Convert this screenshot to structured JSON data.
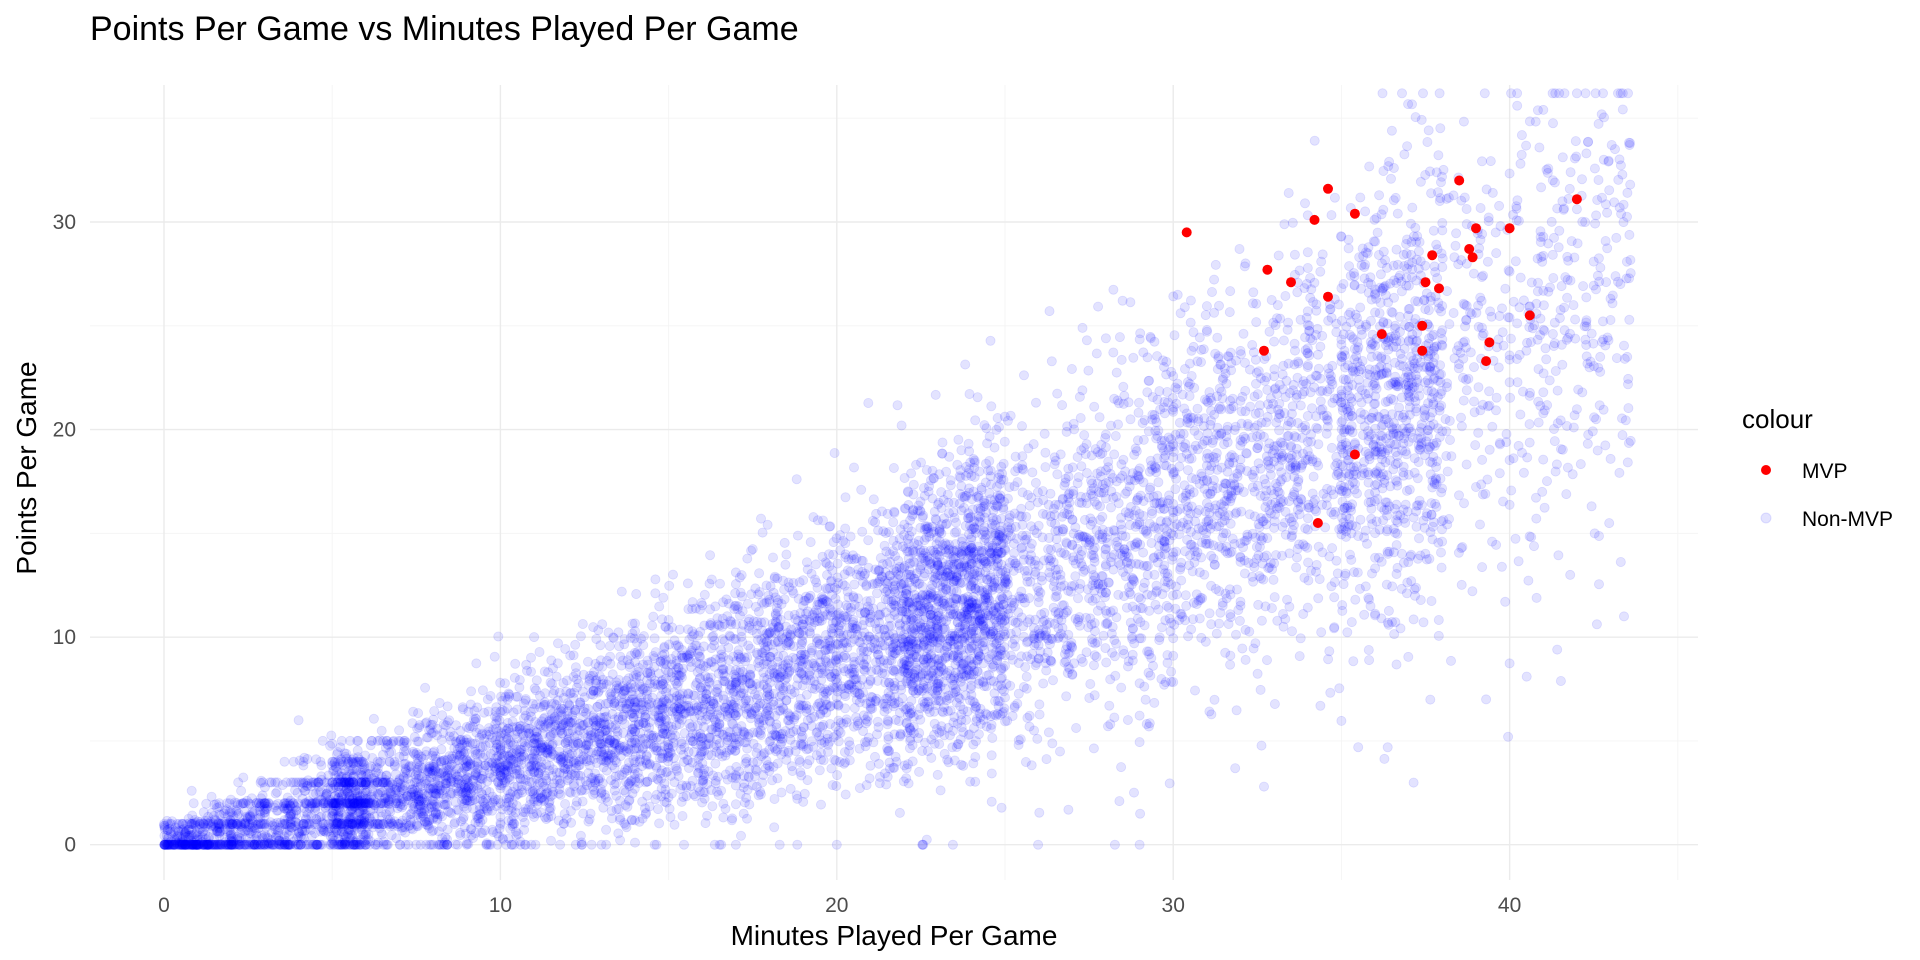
{
  "chart_data": {
    "type": "scatter",
    "title": "Points Per Game vs Minutes Played Per Game",
    "xlabel": "Minutes Played Per Game",
    "ylabel": "Points Per Game",
    "xlim": [
      -2.2,
      45.6
    ],
    "ylim": [
      -1.7,
      36.6
    ],
    "x_ticks": [
      0,
      10,
      20,
      30,
      40
    ],
    "y_ticks": [
      0,
      10,
      20,
      30
    ],
    "grid": true,
    "legend": {
      "title": "colour",
      "placement": "right",
      "entries": [
        {
          "label": "MVP",
          "color": "#ff0000"
        },
        {
          "label": "Non-MVP",
          "color": "#0000ff"
        }
      ]
    },
    "series": [
      {
        "name": "MVP",
        "color": "#ff0000",
        "opacity": 1,
        "points": [
          [
            30.4,
            29.5
          ],
          [
            32.7,
            23.8
          ],
          [
            32.8,
            27.7
          ],
          [
            33.5,
            27.1
          ],
          [
            34.2,
            30.1
          ],
          [
            34.3,
            15.5
          ],
          [
            34.6,
            26.4
          ],
          [
            34.6,
            31.6
          ],
          [
            35.4,
            30.4
          ],
          [
            35.4,
            18.8
          ],
          [
            36.2,
            24.6
          ],
          [
            37.4,
            23.8
          ],
          [
            37.4,
            25.0
          ],
          [
            37.5,
            27.1
          ],
          [
            37.7,
            28.4
          ],
          [
            37.9,
            26.8
          ],
          [
            38.5,
            32.0
          ],
          [
            38.8,
            28.7
          ],
          [
            38.9,
            28.3
          ],
          [
            39.0,
            29.7
          ],
          [
            39.3,
            23.3
          ],
          [
            39.4,
            24.2
          ],
          [
            40.0,
            29.7
          ],
          [
            40.6,
            25.5
          ],
          [
            42.0,
            31.1
          ]
        ]
      },
      {
        "name": "Non-MVP",
        "color": "#0000ff",
        "opacity": 0.11,
        "description_of_cloud": {
          "count": 9000,
          "x_range": [
            0,
            43.6
          ],
          "y_range": [
            0,
            36.2
          ],
          "trend": "y ≈ 0.30x + 0.0078x²"
        },
        "outliers": [
          [
            36.8,
            36.2
          ],
          [
            41.0,
            35.4
          ],
          [
            36.5,
            34.4
          ],
          [
            42.8,
            33.0
          ],
          [
            43.5,
            31.4
          ],
          [
            43.4,
            11.0
          ],
          [
            41.8,
            13.0
          ],
          [
            39.3,
            7.0
          ],
          [
            35.5,
            4.7
          ],
          [
            32.7,
            2.8
          ],
          [
            28.4,
            2.1
          ],
          [
            20.0,
            0.0
          ],
          [
            17.0,
            0.0
          ],
          [
            11.0,
            10.0
          ],
          [
            4.0,
            6.0
          ]
        ]
      }
    ]
  }
}
